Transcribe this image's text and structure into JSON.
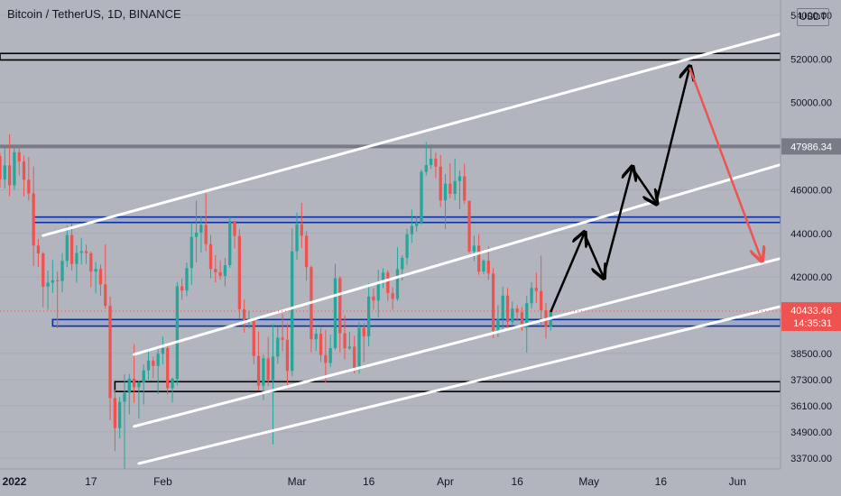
{
  "header": {
    "title": "Bitcoin / TetherUS, 1D, BINANCE",
    "currency": "USDT"
  },
  "colors": {
    "background": "#b2b5be",
    "up": "#26a69a",
    "down": "#ef5350",
    "current_price": "#ef5350",
    "level_marker": "#787b86",
    "channel": "#ffffff",
    "zone": "#0d2fa0",
    "forecast": "#000000",
    "forecast_target": "#ef5350"
  },
  "chart_data": {
    "type": "candlestick",
    "title": "Bitcoin / TetherUS, 1D, BINANCE",
    "x_axis": {
      "range": [
        "2021-12-29",
        "2022-06-10"
      ],
      "tick_labels": [
        {
          "date": "2022-01-01",
          "label": "2022"
        },
        {
          "date": "2022-01-17",
          "label": "17"
        },
        {
          "date": "2022-02-01",
          "label": "Feb"
        },
        {
          "date": "2022-03-01",
          "label": "Mar"
        },
        {
          "date": "2022-03-16",
          "label": "16"
        },
        {
          "date": "2022-04-01",
          "label": "Apr"
        },
        {
          "date": "2022-04-16",
          "label": "16"
        },
        {
          "date": "2022-05-01",
          "label": "May"
        },
        {
          "date": "2022-05-16",
          "label": "16"
        },
        {
          "date": "2022-06-01",
          "label": "Jun"
        }
      ]
    },
    "y_axis": {
      "unit": "USDT",
      "range": [
        33200,
        54700
      ],
      "tick_values": [
        54000,
        52000,
        50000,
        46000,
        44000,
        42000,
        38500,
        37300,
        36100,
        34900,
        33700
      ],
      "tick_labels": [
        "54000.00",
        "52000.00",
        "50000.00",
        "46000.00",
        "44000.00",
        "42000.00",
        "38500.00",
        "37300.00",
        "36100.00",
        "34900.00",
        "33700.00"
      ]
    },
    "markers": [
      {
        "label": "47986.34",
        "value": 47986.34,
        "kind": "level"
      },
      {
        "label": "40433.46",
        "value": 40433.46,
        "kind": "current_price"
      },
      {
        "label": "14:35:31",
        "kind": "countdown"
      }
    ],
    "candles": [
      [
        "2021-12-29",
        47540,
        47700,
        46100,
        46470
      ],
      [
        "2021-12-30",
        46470,
        47900,
        46060,
        47120
      ],
      [
        "2021-12-31",
        47120,
        48550,
        45700,
        46210
      ],
      [
        "2022-01-01",
        46200,
        47950,
        46000,
        47720
      ],
      [
        "2022-01-02",
        47720,
        47990,
        46650,
        47300
      ],
      [
        "2022-01-03",
        47300,
        47560,
        45700,
        46460
      ],
      [
        "2022-01-04",
        46460,
        47500,
        45500,
        45830
      ],
      [
        "2022-01-05",
        45830,
        47070,
        42500,
        43440
      ],
      [
        "2022-01-06",
        43440,
        43750,
        42460,
        43080
      ],
      [
        "2022-01-07",
        43080,
        43150,
        40610,
        41560
      ],
      [
        "2022-01-08",
        41560,
        42300,
        40500,
        41740
      ],
      [
        "2022-01-09",
        41740,
        42780,
        41270,
        41850
      ],
      [
        "2022-01-10",
        41850,
        42250,
        39650,
        41820
      ],
      [
        "2022-01-11",
        41820,
        43100,
        41300,
        42740
      ],
      [
        "2022-01-12",
        42740,
        44350,
        42460,
        43920
      ],
      [
        "2022-01-13",
        43920,
        44460,
        42300,
        42600
      ],
      [
        "2022-01-14",
        42600,
        43450,
        41740,
        43100
      ],
      [
        "2022-01-15",
        43100,
        43800,
        42570,
        43180
      ],
      [
        "2022-01-16",
        43180,
        43480,
        42590,
        43090
      ],
      [
        "2022-01-17",
        43090,
        43180,
        41540,
        42250
      ],
      [
        "2022-01-18",
        42250,
        42690,
        41250,
        42370
      ],
      [
        "2022-01-19",
        42370,
        42580,
        41140,
        41660
      ],
      [
        "2022-01-20",
        41660,
        43500,
        40550,
        40680
      ],
      [
        "2022-01-21",
        40680,
        41100,
        35440,
        36450
      ],
      [
        "2022-01-22",
        36450,
        36840,
        34010,
        35070
      ],
      [
        "2022-01-23",
        35070,
        36500,
        34600,
        36280
      ],
      [
        "2022-01-24",
        36280,
        37550,
        32950,
        36690
      ],
      [
        "2022-01-25",
        36690,
        37550,
        35700,
        37340
      ],
      [
        "2022-01-26",
        37340,
        38920,
        36230,
        36950
      ],
      [
        "2022-01-27",
        36950,
        37230,
        35510,
        37160
      ],
      [
        "2022-01-28",
        37160,
        38000,
        36160,
        37720
      ],
      [
        "2022-01-29",
        37720,
        38720,
        37300,
        38170
      ],
      [
        "2022-01-30",
        38170,
        38360,
        37350,
        37920
      ],
      [
        "2022-01-31",
        37920,
        38740,
        36630,
        38480
      ],
      [
        "2022-02-01",
        38480,
        39270,
        38000,
        38740
      ],
      [
        "2022-02-02",
        38740,
        38850,
        36610,
        36900
      ],
      [
        "2022-02-03",
        36900,
        37390,
        36250,
        37330
      ],
      [
        "2022-02-04",
        37330,
        41770,
        37030,
        41570
      ],
      [
        "2022-02-05",
        41570,
        41930,
        40960,
        41380
      ],
      [
        "2022-02-06",
        41380,
        42660,
        41120,
        42410
      ],
      [
        "2022-02-07",
        42410,
        44500,
        41650,
        43840
      ],
      [
        "2022-02-08",
        43840,
        45500,
        42670,
        44040
      ],
      [
        "2022-02-09",
        44040,
        44800,
        43120,
        44390
      ],
      [
        "2022-02-10",
        44390,
        45820,
        43190,
        43510
      ],
      [
        "2022-02-11",
        43510,
        43920,
        41940,
        42370
      ],
      [
        "2022-02-12",
        42370,
        43000,
        41750,
        42220
      ],
      [
        "2022-02-13",
        42220,
        42760,
        41870,
        42050
      ],
      [
        "2022-02-14",
        42050,
        42880,
        41570,
        42540
      ],
      [
        "2022-02-15",
        42540,
        44750,
        42420,
        44570
      ],
      [
        "2022-02-16",
        44570,
        44580,
        43310,
        43880
      ],
      [
        "2022-02-17",
        43880,
        44200,
        40070,
        40520
      ],
      [
        "2022-02-18",
        40520,
        40960,
        39450,
        39970
      ],
      [
        "2022-02-19",
        39970,
        40440,
        39640,
        40080
      ],
      [
        "2022-02-20",
        40080,
        40140,
        38000,
        38380
      ],
      [
        "2022-02-21",
        38380,
        39500,
        36800,
        37020
      ],
      [
        "2022-02-22",
        37020,
        38450,
        36360,
        38270
      ],
      [
        "2022-02-23",
        38270,
        39250,
        37000,
        37270
      ],
      [
        "2022-02-24",
        37270,
        39850,
        34320,
        38350
      ],
      [
        "2022-02-25",
        38350,
        39700,
        38020,
        39220
      ],
      [
        "2022-02-26",
        39220,
        40300,
        38600,
        39120
      ],
      [
        "2022-02-27",
        39120,
        39860,
        37000,
        37700
      ],
      [
        "2022-02-28",
        37700,
        44230,
        37450,
        43180
      ],
      [
        "2022-03-01",
        43180,
        44950,
        42800,
        44420
      ],
      [
        "2022-03-02",
        44420,
        45400,
        43330,
        43890
      ],
      [
        "2022-03-03",
        43890,
        44100,
        41830,
        42450
      ],
      [
        "2022-03-04",
        42450,
        42520,
        38550,
        39140
      ],
      [
        "2022-03-05",
        39140,
        39640,
        38600,
        39400
      ],
      [
        "2022-03-06",
        39400,
        39680,
        38100,
        38420
      ],
      [
        "2022-03-07",
        38420,
        39570,
        37150,
        38060
      ],
      [
        "2022-03-08",
        38060,
        39360,
        37880,
        38740
      ],
      [
        "2022-03-09",
        38740,
        42600,
        38650,
        41940
      ],
      [
        "2022-03-10",
        41940,
        42040,
        38540,
        39420
      ],
      [
        "2022-03-11",
        39420,
        40240,
        38220,
        38730
      ],
      [
        "2022-03-12",
        38730,
        39490,
        38660,
        38810
      ],
      [
        "2022-03-13",
        38810,
        39300,
        37580,
        37790
      ],
      [
        "2022-03-14",
        37790,
        39940,
        37570,
        39670
      ],
      [
        "2022-03-15",
        39670,
        39890,
        38100,
        39280
      ],
      [
        "2022-03-16",
        39280,
        41720,
        38830,
        41110
      ],
      [
        "2022-03-17",
        41110,
        41480,
        40500,
        40920
      ],
      [
        "2022-03-18",
        40920,
        42330,
        40140,
        41760
      ],
      [
        "2022-03-19",
        41760,
        42400,
        41500,
        42200
      ],
      [
        "2022-03-20",
        42200,
        42300,
        40900,
        41260
      ],
      [
        "2022-03-21",
        41260,
        41540,
        40500,
        41000
      ],
      [
        "2022-03-22",
        41000,
        43360,
        40900,
        42360
      ],
      [
        "2022-03-23",
        42360,
        43000,
        41840,
        42880
      ],
      [
        "2022-03-24",
        42880,
        44200,
        42560,
        43960
      ],
      [
        "2022-03-25",
        43960,
        45090,
        43570,
        44340
      ],
      [
        "2022-03-26",
        44340,
        44800,
        44080,
        44500
      ],
      [
        "2022-03-27",
        44500,
        46920,
        44420,
        46820
      ],
      [
        "2022-03-28",
        46820,
        48190,
        46660,
        47130
      ],
      [
        "2022-03-29",
        47130,
        48100,
        46950,
        47430
      ],
      [
        "2022-03-30",
        47430,
        47700,
        46540,
        47060
      ],
      [
        "2022-03-31",
        47060,
        47600,
        45200,
        45510
      ],
      [
        "2022-04-01",
        45510,
        46720,
        44200,
        46280
      ],
      [
        "2022-04-02",
        46280,
        47210,
        45620,
        45810
      ],
      [
        "2022-04-03",
        45810,
        47440,
        45520,
        46400
      ],
      [
        "2022-04-04",
        46400,
        46890,
        45120,
        46620
      ],
      [
        "2022-04-05",
        46620,
        47200,
        45350,
        45500
      ],
      [
        "2022-04-06",
        45500,
        45500,
        43100,
        43170
      ],
      [
        "2022-04-07",
        43170,
        43900,
        42730,
        43440
      ],
      [
        "2022-04-08",
        43440,
        43970,
        42100,
        42250
      ],
      [
        "2022-04-09",
        42250,
        42800,
        42130,
        42750
      ],
      [
        "2022-04-10",
        42750,
        43410,
        41870,
        42160
      ],
      [
        "2022-04-11",
        42160,
        42410,
        39200,
        39530
      ],
      [
        "2022-04-12",
        39530,
        40700,
        39250,
        40080
      ],
      [
        "2022-04-13",
        40080,
        41560,
        39550,
        41150
      ],
      [
        "2022-04-14",
        41150,
        41500,
        39550,
        39940
      ],
      [
        "2022-04-15",
        39940,
        40870,
        39770,
        40550
      ],
      [
        "2022-04-16",
        40550,
        40710,
        39990,
        40380
      ],
      [
        "2022-04-17",
        40380,
        40620,
        39540,
        39680
      ],
      [
        "2022-04-18",
        39680,
        41150,
        38540,
        40800
      ],
      [
        "2022-04-19",
        40800,
        41760,
        40570,
        41500
      ],
      [
        "2022-04-20",
        41500,
        42200,
        40820,
        41360
      ],
      [
        "2022-04-21",
        41360,
        42980,
        39750,
        40480
      ],
      [
        "2022-04-22",
        40480,
        40800,
        39180,
        39710
      ],
      [
        "2022-04-23",
        39710,
        40440,
        39540,
        40433.46
      ]
    ],
    "horizontal_levels": [
      {
        "kind": "black_box",
        "top": 52250,
        "bottom": 51950
      },
      {
        "kind": "gray_line",
        "value": 47986.34
      },
      {
        "kind": "blue_box",
        "top": 44750,
        "bottom": 44500
      },
      {
        "kind": "blue_box",
        "top": 40050,
        "bottom": 39750
      },
      {
        "kind": "black_box",
        "top": 37200,
        "bottom": 36750
      }
    ],
    "channel_lines": [
      {
        "start": [
          "2022-01-07",
          43900
        ],
        "end": [
          "2022-06-10",
          53150
        ]
      },
      {
        "start": [
          "2022-01-26",
          38450
        ],
        "end": [
          "2022-06-10",
          47150
        ]
      },
      {
        "start": [
          "2022-01-26",
          35150
        ],
        "end": [
          "2022-06-10",
          42850
        ]
      },
      {
        "start": [
          "2022-01-27",
          33450
        ],
        "end": [
          "2022-06-10",
          40650
        ]
      }
    ],
    "forecast_path": [
      [
        "2022-04-23",
        40400
      ],
      [
        "2022-04-30",
        44000
      ],
      [
        "2022-05-04",
        42000
      ],
      [
        "2022-05-10",
        47000
      ],
      [
        "2022-05-15",
        45400
      ],
      [
        "2022-05-22",
        51600
      ],
      [
        "2022-06-06",
        42800
      ]
    ]
  }
}
